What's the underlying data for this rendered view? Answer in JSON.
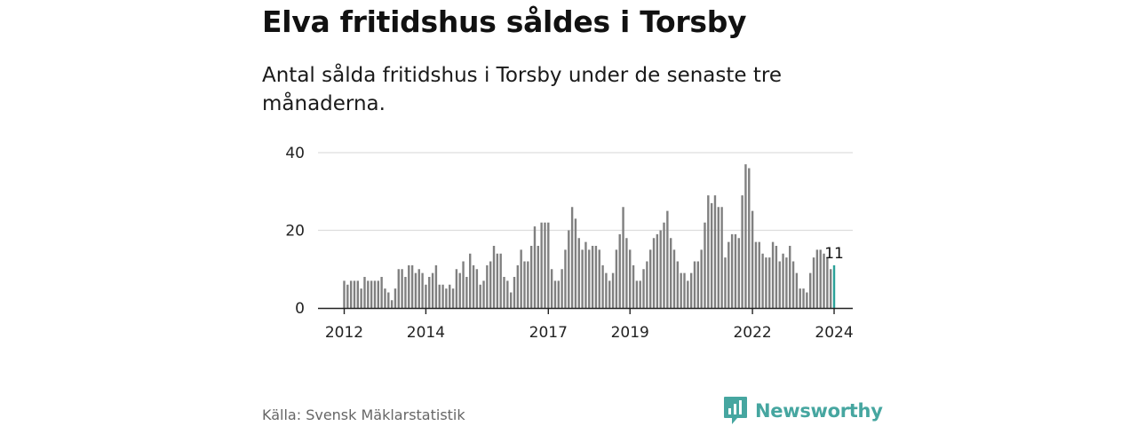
{
  "title": "Elva fritidshus såldes i Torsby",
  "subtitle": "Antal sålda fritidshus i Torsby under de senaste tre månaderna.",
  "source": "Källa: Svensk Mäklarstatistik",
  "brand": "Newsworthy",
  "colors": {
    "bar": "#808080",
    "highlight": "#2aa198",
    "grid": "#dddddd",
    "axis": "#222222",
    "brand": "#46a6a0"
  },
  "chart_data": {
    "type": "bar",
    "x_start": "2012-01",
    "x_interval": "1 month",
    "ylim": [
      0,
      40
    ],
    "yticks": [
      0,
      20,
      40
    ],
    "xticks": [
      "2012",
      "2014",
      "2017",
      "2019",
      "2022",
      "2024"
    ],
    "grid": true,
    "values": [
      7,
      6,
      7,
      7,
      7,
      5,
      8,
      7,
      7,
      7,
      7,
      8,
      5,
      4,
      2,
      5,
      10,
      10,
      8,
      11,
      11,
      9,
      10,
      9,
      6,
      8,
      9,
      11,
      6,
      6,
      5,
      6,
      5,
      10,
      9,
      12,
      8,
      14,
      11,
      10,
      6,
      7,
      11,
      12,
      16,
      14,
      14,
      8,
      7,
      4,
      8,
      11,
      15,
      12,
      12,
      16,
      21,
      16,
      22,
      22,
      22,
      10,
      7,
      7,
      10,
      15,
      20,
      26,
      23,
      18,
      15,
      17,
      15,
      16,
      16,
      15,
      11,
      9,
      7,
      9,
      15,
      19,
      26,
      18,
      15,
      11,
      7,
      7,
      10,
      12,
      15,
      18,
      19,
      20,
      22,
      25,
      18,
      15,
      12,
      9,
      9,
      7,
      9,
      12,
      12,
      15,
      22,
      29,
      27,
      29,
      26,
      26,
      13,
      17,
      19,
      19,
      18,
      29,
      37,
      36,
      25,
      17,
      17,
      14,
      13,
      13,
      17,
      16,
      12,
      14,
      13,
      16,
      12,
      9,
      5,
      5,
      4,
      9,
      13,
      15,
      15,
      14,
      13,
      10,
      11
    ],
    "highlight_last": true,
    "last_value_label": "11"
  }
}
